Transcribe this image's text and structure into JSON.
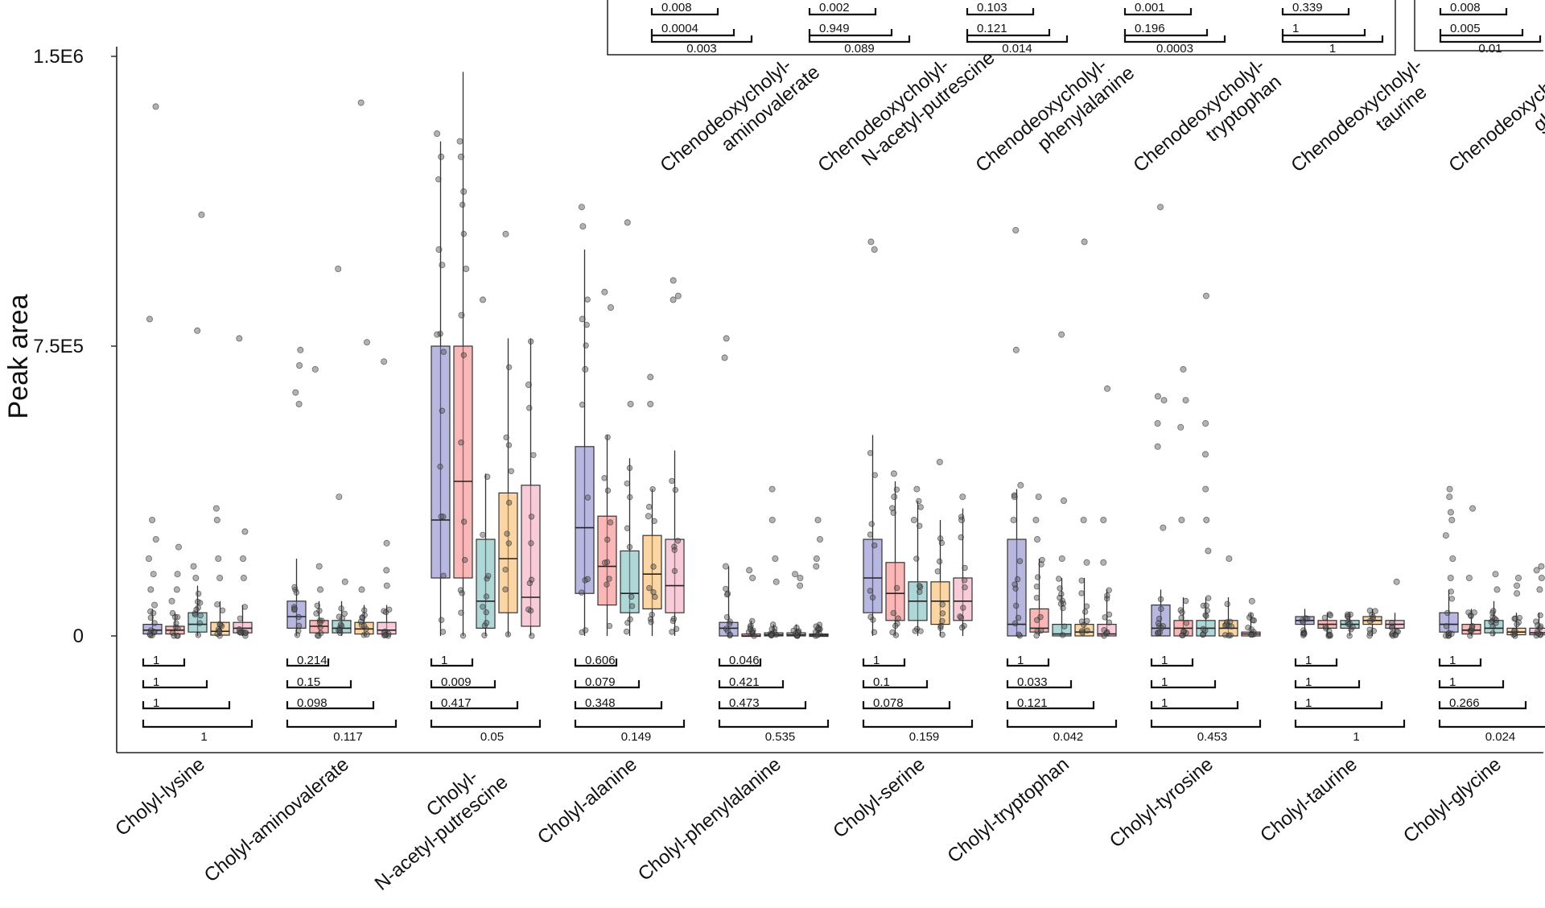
{
  "chart_data": {
    "type": "box",
    "ylabel": "Peak area",
    "ylim": [
      0,
      1500000
    ],
    "yticks": [
      {
        "value": 0,
        "label": "0"
      },
      {
        "value": 750000,
        "label": "7.5E5"
      },
      {
        "value": 1500000,
        "label": "1.5E6"
      }
    ],
    "group_colors": [
      "#7b7bc4",
      "#f47c7c",
      "#6fb7b7",
      "#f7b55a",
      "#f2a1b9"
    ],
    "categories": [
      {
        "label_lines": [
          "Cholyl-lysine"
        ],
        "boxes": [
          [
            0,
            5000,
            15000,
            30000,
            70000
          ],
          [
            0,
            5000,
            15000,
            25000,
            60000
          ],
          [
            0,
            10000,
            30000,
            60000,
            130000
          ],
          [
            0,
            2000,
            12000,
            35000,
            90000
          ],
          [
            0,
            8000,
            20000,
            35000,
            80000
          ]
        ],
        "outliers": [
          [
            1370000,
            820000,
            300000,
            250000,
            200000,
            160000,
            120000,
            80000
          ],
          [
            230000,
            160000,
            120000,
            90000
          ],
          [
            1090000,
            790000,
            180000,
            150000
          ],
          [
            330000,
            300000,
            200000,
            150000
          ],
          [
            770000,
            270000,
            200000,
            150000
          ]
        ],
        "pvalues": [
          "1",
          "1",
          "1",
          "1"
        ]
      },
      {
        "label_lines": [
          "Cholyl-aminovalerate"
        ],
        "boxes": [
          [
            0,
            20000,
            50000,
            90000,
            200000
          ],
          [
            0,
            8000,
            25000,
            40000,
            90000
          ],
          [
            0,
            8000,
            20000,
            40000,
            90000
          ],
          [
            0,
            5000,
            18000,
            35000,
            80000
          ],
          [
            0,
            5000,
            15000,
            35000,
            80000
          ]
        ],
        "outliers": [
          [
            740000,
            700000,
            630000,
            600000
          ],
          [
            690000,
            180000,
            120000
          ],
          [
            950000,
            360000,
            140000
          ],
          [
            1380000,
            760000,
            120000
          ],
          [
            710000,
            240000,
            170000,
            130000
          ]
        ],
        "pvalues": [
          "0.214",
          "0.15",
          "0.098",
          "0.117"
        ]
      },
      {
        "label_lines": [
          "Cholyl-",
          "N-acetyl-putrescine"
        ],
        "boxes": [
          [
            0,
            150000,
            300000,
            750000,
            1280000
          ],
          [
            0,
            150000,
            400000,
            750000,
            1460000
          ],
          [
            0,
            20000,
            90000,
            250000,
            420000
          ],
          [
            0,
            60000,
            200000,
            370000,
            770000
          ],
          [
            0,
            25000,
            100000,
            390000,
            770000
          ]
        ],
        "outliers": [
          [
            1300000,
            1240000,
            1000000,
            960000,
            780000
          ],
          [
            1280000,
            1240000,
            1150000,
            950000,
            830000
          ],
          [
            870000
          ],
          [
            1040000
          ],
          [
            650000
          ]
        ],
        "pvalues": [
          "1",
          "0.009",
          "0.417",
          "0.05"
        ]
      },
      {
        "label_lines": [
          "Cholyl-alanine"
        ],
        "boxes": [
          [
            0,
            110000,
            280000,
            490000,
            1000000
          ],
          [
            0,
            80000,
            180000,
            310000,
            520000
          ],
          [
            0,
            60000,
            110000,
            220000,
            460000
          ],
          [
            0,
            70000,
            160000,
            260000,
            380000
          ],
          [
            0,
            60000,
            130000,
            250000,
            480000
          ]
        ],
        "outliers": [
          [
            1110000,
            1060000,
            820000,
            690000
          ],
          [
            890000,
            850000
          ],
          [
            1070000,
            600000
          ],
          [
            670000,
            600000,
            310000
          ],
          [
            920000,
            880000,
            870000
          ]
        ],
        "pvalues": [
          "0.606",
          "0.079",
          "0.348",
          "0.149"
        ]
      },
      {
        "label_lines": [
          "Cholyl-phenylalanine"
        ],
        "boxes": [
          [
            0,
            0,
            20000,
            35000,
            180000
          ],
          [
            0,
            0,
            0,
            5000,
            40000
          ],
          [
            0,
            0,
            3000,
            8000,
            30000
          ],
          [
            0,
            0,
            3000,
            8000,
            30000
          ],
          [
            0,
            0,
            2000,
            5000,
            30000
          ]
        ],
        "outliers": [
          [
            770000,
            720000,
            180000
          ],
          [
            170000,
            150000
          ],
          [
            380000,
            300000,
            200000,
            140000
          ],
          [
            160000,
            150000,
            130000
          ],
          [
            300000,
            250000,
            200000,
            180000
          ]
        ],
        "pvalues": [
          "0.046",
          "0.421",
          "0.473",
          "0.535"
        ]
      },
      {
        "label_lines": [
          "Cholyl-serine"
        ],
        "boxes": [
          [
            0,
            60000,
            150000,
            250000,
            520000
          ],
          [
            0,
            40000,
            110000,
            190000,
            400000
          ],
          [
            0,
            40000,
            90000,
            140000,
            350000
          ],
          [
            0,
            30000,
            90000,
            140000,
            300000
          ],
          [
            0,
            40000,
            90000,
            150000,
            330000
          ]
        ],
        "outliers": [
          [
            1020000,
            1000000
          ],
          [
            420000,
            360000
          ],
          [
            380000,
            300000
          ],
          [
            450000
          ],
          [
            360000,
            300000
          ]
        ],
        "pvalues": [
          "1",
          "0.1",
          "0.078",
          "0.159"
        ]
      },
      {
        "label_lines": [
          "Cholyl-tryptophan"
        ],
        "boxes": [
          [
            0,
            0,
            30000,
            250000,
            380000
          ],
          [
            0,
            10000,
            20000,
            70000,
            200000
          ],
          [
            0,
            0,
            5000,
            30000,
            150000
          ],
          [
            0,
            0,
            10000,
            30000,
            150000
          ],
          [
            0,
            0,
            5000,
            30000,
            120000
          ]
        ],
        "outliers": [
          [
            1050000,
            740000,
            390000,
            360000,
            300000
          ],
          [
            360000,
            300000,
            250000
          ],
          [
            780000,
            350000,
            200000
          ],
          [
            1020000,
            300000,
            190000
          ],
          [
            640000,
            300000,
            190000
          ]
        ],
        "pvalues": [
          "1",
          "0.033",
          "0.121",
          "0.042"
        ]
      },
      {
        "label_lines": [
          "Cholyl-tyrosine"
        ],
        "boxes": [
          [
            0,
            0,
            20000,
            80000,
            120000
          ],
          [
            0,
            0,
            20000,
            40000,
            100000
          ],
          [
            0,
            0,
            20000,
            40000,
            100000
          ],
          [
            0,
            0,
            20000,
            40000,
            100000
          ],
          [
            0,
            0,
            5000,
            10000,
            60000
          ]
        ],
        "outliers": [
          [
            1110000,
            620000,
            610000,
            550000,
            490000,
            280000
          ],
          [
            690000,
            610000,
            540000,
            300000
          ],
          [
            880000,
            550000,
            470000,
            380000,
            300000,
            220000
          ],
          [
            200000
          ],
          [
            90000
          ]
        ],
        "pvalues": [
          "1",
          "1",
          "1",
          "0.453"
        ]
      },
      {
        "label_lines": [
          "Cholyl-taurine"
        ],
        "boxes": [
          [
            0,
            30000,
            40000,
            50000,
            70000
          ],
          [
            0,
            20000,
            30000,
            40000,
            60000
          ],
          [
            0,
            20000,
            30000,
            40000,
            60000
          ],
          [
            0,
            30000,
            40000,
            50000,
            70000
          ],
          [
            0,
            20000,
            30000,
            40000,
            60000
          ]
        ],
        "outliers": [
          [],
          [],
          [],
          [],
          [
            140000
          ]
        ],
        "pvalues": [
          "1",
          "1",
          "1",
          "1"
        ]
      },
      {
        "label_lines": [
          "Cholyl-glycine"
        ],
        "boxes": [
          [
            0,
            10000,
            30000,
            60000,
            120000
          ],
          [
            0,
            5000,
            15000,
            30000,
            70000
          ],
          [
            0,
            8000,
            20000,
            40000,
            90000
          ],
          [
            0,
            3000,
            10000,
            20000,
            60000
          ],
          [
            0,
            3000,
            8000,
            20000,
            60000
          ]
        ],
        "outliers": [
          [
            380000,
            360000,
            320000,
            300000,
            260000,
            200000,
            150000
          ],
          [
            330000,
            150000
          ],
          [
            160000,
            120000
          ],
          [
            150000,
            130000,
            110000
          ],
          [
            180000,
            170000,
            150000,
            120000
          ]
        ],
        "pvalues": [
          "1",
          "1",
          "0.266",
          "0.024"
        ]
      }
    ],
    "top_panels": [
      {
        "label_lines": [
          "Chenodeoxycholyl-",
          "aminovalerate"
        ],
        "pvalues": [
          "0.008",
          "0.0004",
          "0.003"
        ]
      },
      {
        "label_lines": [
          "Chenodeoxycholyl-",
          "N-acetyl-putrescine"
        ],
        "pvalues": [
          "0.002",
          "0.949",
          "0.089"
        ]
      },
      {
        "label_lines": [
          "Chenodeoxycholyl-",
          "phenylalanine"
        ],
        "pvalues": [
          "0.103",
          "0.121",
          "0.014"
        ]
      },
      {
        "label_lines": [
          "Chenodeoxycholyl-",
          "tryptophan"
        ],
        "pvalues": [
          "0.001",
          "0.196",
          "0.0003"
        ]
      },
      {
        "label_lines": [
          "Chenodeoxycholyl-",
          "taurine"
        ],
        "pvalues": [
          "0.339",
          "1",
          "1"
        ]
      },
      {
        "label_lines": [
          "Chenodeoxycholyl-",
          "glycine"
        ],
        "pvalues": [
          "0.008",
          "0.005",
          "0.01"
        ]
      }
    ]
  }
}
